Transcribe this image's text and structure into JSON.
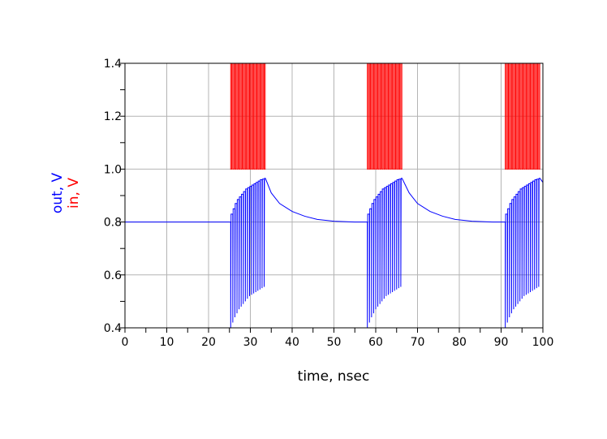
{
  "chart_data": {
    "type": "line",
    "title": "",
    "xlabel": "time, nsec",
    "ylabels": [
      {
        "text": "out, V",
        "color": "#0000ff"
      },
      {
        "text": "in, V",
        "color": "#ff0000"
      }
    ],
    "xlim": [
      0,
      100
    ],
    "ylim": [
      0.4,
      1.4
    ],
    "xticks": [
      0,
      10,
      20,
      30,
      40,
      50,
      60,
      70,
      80,
      90,
      100
    ],
    "xtick_labels": [
      "0",
      "10",
      "20",
      "30",
      "40",
      "50",
      "60",
      "70",
      "80",
      "90",
      "100"
    ],
    "yticks": [
      0.4,
      0.6,
      0.8,
      1.0,
      1.2,
      1.4
    ],
    "ytick_labels": [
      "0.4",
      "0.6",
      "0.8",
      "1.0",
      "1.2",
      "1.4"
    ],
    "grid": true,
    "series": [
      {
        "name": "in",
        "color": "#ff0000",
        "high": 1.4,
        "low": 1.0,
        "pulse_width": 0.25,
        "bursts": [
          [
            25.3,
            25.8,
            26.3,
            26.8,
            27.3,
            27.8,
            28.3,
            28.8,
            29.3,
            29.8,
            30.3,
            30.8,
            31.3,
            31.8,
            32.3,
            32.8,
            33.3
          ],
          [
            58.0,
            58.5,
            59.0,
            59.5,
            60.0,
            60.5,
            61.0,
            61.5,
            62.0,
            62.5,
            63.0,
            63.5,
            64.0,
            64.5,
            65.0,
            65.5,
            66.0
          ],
          [
            91.0,
            91.5,
            92.0,
            92.5,
            93.0,
            93.5,
            94.0,
            94.5,
            95.0,
            95.5,
            96.0,
            96.5,
            97.0,
            97.5,
            98.0,
            98.5,
            99.0
          ]
        ]
      },
      {
        "name": "out",
        "color": "#0000ff",
        "bursts": [
          {
            "t": [
              25.3,
              25.8,
              26.3,
              26.8,
              27.3,
              27.8,
              28.3,
              28.8,
              29.3,
              29.8,
              30.3,
              30.8,
              31.3,
              31.8,
              32.3,
              32.8,
              33.3
            ],
            "low": [
              0.4,
              0.42,
              0.44,
              0.455,
              0.47,
              0.48,
              0.49,
              0.5,
              0.51,
              0.52,
              0.525,
              0.53,
              0.535,
              0.54,
              0.545,
              0.55,
              0.555
            ],
            "high": [
              0.83,
              0.85,
              0.87,
              0.885,
              0.895,
              0.905,
              0.915,
              0.925,
              0.93,
              0.935,
              0.94,
              0.945,
              0.95,
              0.955,
              0.96,
              0.962,
              0.965
            ]
          },
          {
            "t": [
              58.0,
              58.5,
              59.0,
              59.5,
              60.0,
              60.5,
              61.0,
              61.5,
              62.0,
              62.5,
              63.0,
              63.5,
              64.0,
              64.5,
              65.0,
              65.5,
              66.0
            ],
            "low": [
              0.4,
              0.42,
              0.44,
              0.455,
              0.47,
              0.48,
              0.49,
              0.5,
              0.51,
              0.52,
              0.525,
              0.53,
              0.535,
              0.54,
              0.545,
              0.55,
              0.555
            ],
            "high": [
              0.83,
              0.85,
              0.87,
              0.885,
              0.895,
              0.905,
              0.915,
              0.925,
              0.93,
              0.935,
              0.94,
              0.945,
              0.95,
              0.955,
              0.96,
              0.962,
              0.965
            ]
          },
          {
            "t": [
              91.0,
              91.5,
              92.0,
              92.5,
              93.0,
              93.5,
              94.0,
              94.5,
              95.0,
              95.5,
              96.0,
              96.5,
              97.0,
              97.5,
              98.0,
              98.5,
              99.0
            ],
            "low": [
              0.4,
              0.42,
              0.44,
              0.455,
              0.47,
              0.48,
              0.49,
              0.5,
              0.51,
              0.52,
              0.525,
              0.53,
              0.535,
              0.54,
              0.545,
              0.55,
              0.555
            ],
            "high": [
              0.83,
              0.85,
              0.87,
              0.885,
              0.895,
              0.905,
              0.915,
              0.925,
              0.93,
              0.935,
              0.94,
              0.945,
              0.95,
              0.955,
              0.96,
              0.962,
              0.965
            ]
          }
        ],
        "segments": [
          [
            [
              0,
              0.8
            ],
            [
              25.3,
              0.8
            ]
          ],
          [
            [
              33.6,
              0.965
            ],
            [
              35,
              0.91
            ],
            [
              37,
              0.87
            ],
            [
              40,
              0.84
            ],
            [
              43,
              0.822
            ],
            [
              46,
              0.81
            ],
            [
              50,
              0.803
            ],
            [
              55,
              0.8
            ],
            [
              58,
              0.8
            ]
          ],
          [
            [
              66.3,
              0.965
            ],
            [
              68,
              0.91
            ],
            [
              70,
              0.87
            ],
            [
              73,
              0.84
            ],
            [
              76,
              0.822
            ],
            [
              79,
              0.81
            ],
            [
              83,
              0.803
            ],
            [
              88,
              0.8
            ],
            [
              91,
              0.8
            ]
          ],
          [
            [
              99.3,
              0.965
            ],
            [
              100,
              0.95
            ]
          ]
        ]
      }
    ]
  }
}
